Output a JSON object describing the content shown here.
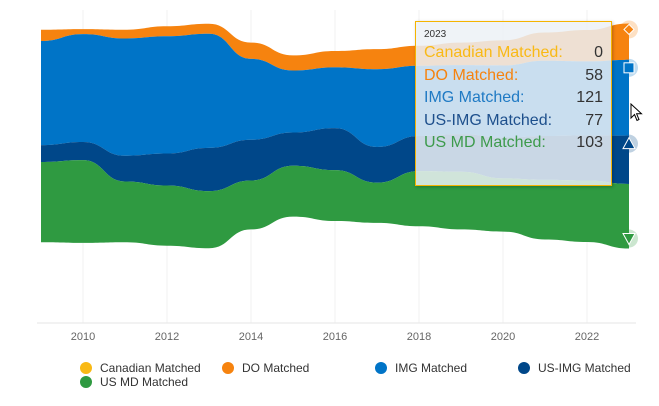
{
  "chart_data": {
    "type": "area",
    "subtype": "streamgraph",
    "title": "",
    "xlabel": "",
    "ylabel": "",
    "grid": true,
    "legend_position": "bottom",
    "x": [
      2009,
      2010,
      2011,
      2012,
      2013,
      2014,
      2015,
      2016,
      2017,
      2018,
      2019,
      2020,
      2021,
      2022,
      2023
    ],
    "x_ticks": [
      "2010",
      "2012",
      "2014",
      "2016",
      "2018",
      "2020",
      "2022"
    ],
    "series": [
      {
        "name": "Canadian Matched",
        "color": "#f9b915",
        "marker": "circle",
        "values": [
          0,
          0,
          0,
          0,
          0,
          0,
          0,
          0,
          0,
          0,
          0,
          0,
          0,
          0,
          0
        ]
      },
      {
        "name": "DO Matched",
        "color": "#f6830f",
        "marker": "diamond",
        "values": [
          18,
          8,
          14,
          16,
          16,
          26,
          24,
          26,
          32,
          32,
          36,
          40,
          45,
          50,
          58
        ]
      },
      {
        "name": "IMG Matched",
        "color": "#0074c7",
        "marker": "square",
        "values": [
          166,
          172,
          187,
          187,
          182,
          129,
          99,
          97,
          124,
          112,
          110,
          115,
          120,
          118,
          121
        ]
      },
      {
        "name": "US-IMG Matched",
        "color": "#004789",
        "marker": "triangle-up",
        "values": [
          27,
          29,
          41,
          51,
          69,
          65,
          53,
          67,
          57,
          56,
          60,
          65,
          70,
          72,
          77
        ]
      },
      {
        "name": "US MD Matched",
        "color": "#2f9a41",
        "marker": "triangle-down",
        "values": [
          128,
          132,
          97,
          96,
          91,
          78,
          81,
          81,
          64,
          88,
          92,
          85,
          95,
          98,
          103
        ]
      }
    ]
  },
  "tooltip": {
    "year": "2023",
    "rows": [
      {
        "label": "Canadian Matched:",
        "value": "0",
        "color": "#f9b915"
      },
      {
        "label": "DO Matched:",
        "value": "58",
        "color": "#f6830f"
      },
      {
        "label": "IMG Matched:",
        "value": "121",
        "color": "#1f7ac4"
      },
      {
        "label": "US-IMG Matched:",
        "value": "77",
        "color": "#1d4f8c"
      },
      {
        "label": "US MD Matched:",
        "value": "103",
        "color": "#3d9b4c"
      }
    ]
  }
}
